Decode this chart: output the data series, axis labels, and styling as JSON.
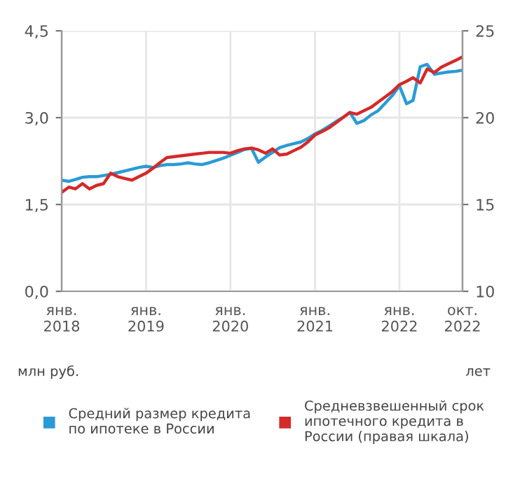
{
  "chart_data": {
    "type": "line",
    "x": [
      "2018-01",
      "2018-02",
      "2018-03",
      "2018-04",
      "2018-05",
      "2018-06",
      "2018-07",
      "2018-08",
      "2018-09",
      "2018-10",
      "2018-11",
      "2018-12",
      "2019-01",
      "2019-02",
      "2019-03",
      "2019-04",
      "2019-05",
      "2019-06",
      "2019-07",
      "2019-08",
      "2019-09",
      "2019-10",
      "2019-11",
      "2019-12",
      "2020-01",
      "2020-02",
      "2020-03",
      "2020-04",
      "2020-05",
      "2020-06",
      "2020-07",
      "2020-08",
      "2020-09",
      "2020-10",
      "2020-11",
      "2020-12",
      "2021-01",
      "2021-02",
      "2021-03",
      "2021-04",
      "2021-05",
      "2021-06",
      "2021-07",
      "2021-08",
      "2021-09",
      "2021-10",
      "2021-11",
      "2021-12",
      "2022-01",
      "2022-02",
      "2022-03",
      "2022-04",
      "2022-05",
      "2022-06",
      "2022-07",
      "2022-08",
      "2022-09",
      "2022-10"
    ],
    "series": [
      {
        "name": "Средний размер кредита по ипотеке в России",
        "color": "#2a9bd6",
        "values": [
          1.92,
          1.9,
          1.93,
          1.97,
          1.98,
          1.98,
          2.0,
          2.02,
          2.05,
          2.08,
          2.11,
          2.14,
          2.16,
          2.14,
          2.17,
          2.19,
          2.19,
          2.2,
          2.22,
          2.2,
          2.19,
          2.22,
          2.26,
          2.3,
          2.35,
          2.4,
          2.45,
          2.47,
          2.23,
          2.32,
          2.4,
          2.48,
          2.52,
          2.55,
          2.58,
          2.64,
          2.72,
          2.78,
          2.85,
          2.93,
          3.0,
          3.09,
          2.9,
          2.95,
          3.05,
          3.12,
          3.25,
          3.38,
          3.55,
          3.24,
          3.3,
          3.88,
          3.92,
          3.75,
          3.77,
          3.79,
          3.8,
          3.82
        ]
      },
      {
        "name": "Средневзвешенный срок ипотечного кредита в России (правая шкала)",
        "color": "#d42a2a",
        "axis": "y2",
        "values": [
          15.7,
          16.0,
          15.9,
          16.2,
          15.9,
          16.1,
          16.2,
          16.8,
          16.6,
          16.5,
          16.4,
          16.6,
          16.8,
          17.1,
          17.4,
          17.7,
          17.75,
          17.8,
          17.85,
          17.9,
          17.95,
          18.0,
          18.0,
          18.0,
          17.95,
          18.1,
          18.2,
          18.25,
          18.15,
          17.95,
          18.2,
          17.85,
          17.9,
          18.1,
          18.3,
          18.6,
          19.0,
          19.2,
          19.4,
          19.7,
          20.0,
          20.3,
          20.2,
          20.4,
          20.6,
          20.9,
          21.2,
          21.5,
          21.9,
          22.1,
          22.3,
          22.0,
          22.8,
          22.6,
          22.9,
          23.1,
          23.3,
          23.5
        ]
      }
    ],
    "xlim": [
      "2018-01",
      "2022-10"
    ],
    "xticks": [
      {
        "value": "2018-01",
        "label": "янв.\n2018"
      },
      {
        "value": "2019-01",
        "label": "янв.\n2019"
      },
      {
        "value": "2020-01",
        "label": "янв.\n2020"
      },
      {
        "value": "2021-01",
        "label": "янв.\n2021"
      },
      {
        "value": "2022-01",
        "label": "янв.\n2022"
      },
      {
        "value": "2022-10",
        "label": "окт.\n2022"
      }
    ],
    "ylim": [
      0,
      4.5
    ],
    "yticks": [
      {
        "value": 0,
        "label": "0,0"
      },
      {
        "value": 1.5,
        "label": "1,5"
      },
      {
        "value": 3.0,
        "label": "3,0"
      },
      {
        "value": 4.5,
        "label": "4,5"
      }
    ],
    "y2lim": [
      10,
      25
    ],
    "y2ticks": [
      10,
      15,
      20,
      25
    ],
    "ylabel": "млн руб.",
    "y2label": "лет",
    "grid": true,
    "legend": "bottom",
    "marker": "none",
    "line_style": "solid"
  }
}
